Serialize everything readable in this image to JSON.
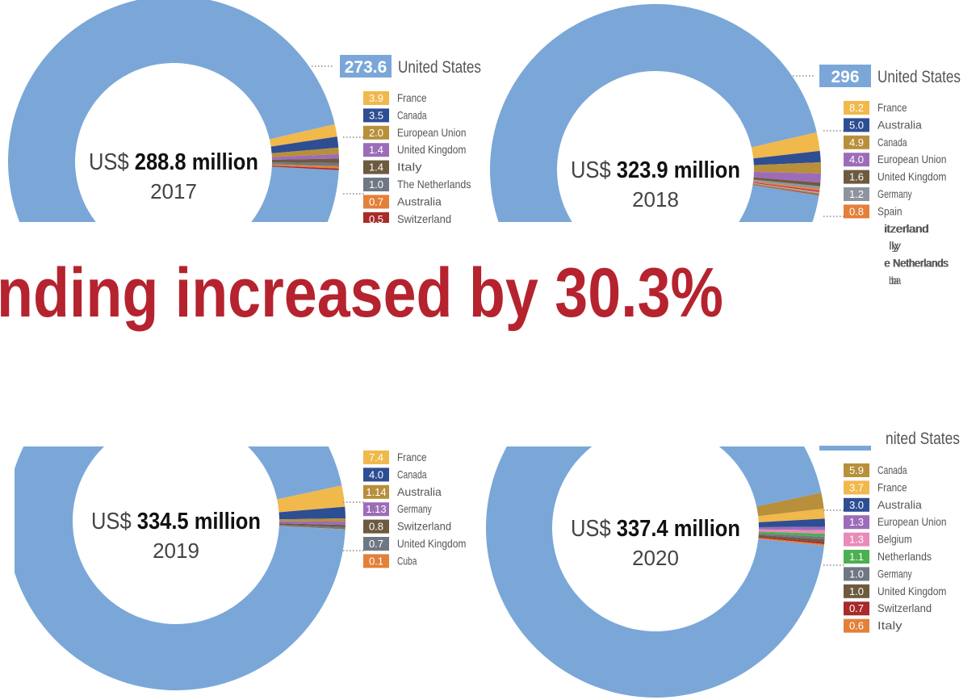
{
  "headline": "nding increased by 30.3%",
  "colors": {
    "us": "#7aa7d8",
    "headline": "#b5232f",
    "label_text": "#555555",
    "center_text": "#111111"
  },
  "chart_data": [
    {
      "type": "pie",
      "year": "2017",
      "currency": "US$",
      "total": "288.8 million",
      "top": {
        "value": "273.6",
        "name": "United States"
      },
      "items": [
        {
          "value": "3.9",
          "name": "France",
          "color": "#f1b84b"
        },
        {
          "value": "3.5",
          "name": "Canada",
          "color": "#2e4e93"
        },
        {
          "value": "2.0",
          "name": "European Union",
          "color": "#b88f3a"
        },
        {
          "value": "1.4",
          "name": "United Kingdom",
          "color": "#9d6cb9"
        },
        {
          "value": "1.4",
          "name": "Italy",
          "color": "#6d5a3f"
        },
        {
          "value": "1.0",
          "name": "The Netherlands",
          "color": "#707784"
        },
        {
          "value": "0.7",
          "name": "Australia",
          "color": "#e3803a"
        },
        {
          "value": "0.5",
          "name": "Switzerland",
          "color": "#a72b2b"
        }
      ]
    },
    {
      "type": "pie",
      "year": "2018",
      "currency": "US$",
      "total": "323.9 million",
      "top": {
        "value": "296",
        "name": "United States"
      },
      "items": [
        {
          "value": "8.2",
          "name": "France",
          "color": "#f1b84b"
        },
        {
          "value": "5.0",
          "name": "Australia",
          "color": "#2e4e93"
        },
        {
          "value": "4.9",
          "name": "Canada",
          "color": "#b88f3a"
        },
        {
          "value": "4.0",
          "name": "European Union",
          "color": "#9d6cb9"
        },
        {
          "value": "1.6",
          "name": "United Kingdom",
          "color": "#6d5a3f"
        },
        {
          "value": "1.2",
          "name": "Germany",
          "color": "#8e949e"
        },
        {
          "value": "0.8",
          "name": "Spain",
          "color": "#e3803a"
        },
        {
          "value": "",
          "name": "itzerland",
          "color": "#a72b2b"
        },
        {
          "value": "",
          "name": "ly",
          "color": "#f08cb8"
        },
        {
          "value": "",
          "name": "e Netherlands",
          "color": "#5fa55a"
        },
        {
          "value": "",
          "name": "ba",
          "color": "#c84c2f"
        }
      ]
    },
    {
      "type": "pie",
      "year": "2019",
      "currency": "US$",
      "total": "334.5 million",
      "items": [
        {
          "value": "7.4",
          "name": "France",
          "color": "#f1b84b"
        },
        {
          "value": "4.0",
          "name": "Canada",
          "color": "#2e4e93"
        },
        {
          "value": "1.14",
          "name": "Australia",
          "color": "#b88f3a"
        },
        {
          "value": "1.13",
          "name": "Germany",
          "color": "#9d6cb9"
        },
        {
          "value": "0.8",
          "name": "Switzerland",
          "color": "#6d5a3f"
        },
        {
          "value": "0.7",
          "name": "United Kingdom",
          "color": "#707784"
        },
        {
          "value": "0.1",
          "name": "Cuba",
          "color": "#e3803a"
        }
      ]
    },
    {
      "type": "pie",
      "year": "2020",
      "currency": "US$",
      "total": "337.4 million",
      "top": {
        "value": "",
        "name": "nited States"
      },
      "items": [
        {
          "value": "5.9",
          "name": "Canada",
          "color": "#b88f3a"
        },
        {
          "value": "3.7",
          "name": "France",
          "color": "#f1b84b"
        },
        {
          "value": "3.0",
          "name": "Australia",
          "color": "#2e4e93"
        },
        {
          "value": "1.3",
          "name": "European Union",
          "color": "#9d6cb9"
        },
        {
          "value": "1.3",
          "name": "Belgium",
          "color": "#e98bb8"
        },
        {
          "value": "1.1",
          "name": "Netherlands",
          "color": "#4caf50"
        },
        {
          "value": "1.0",
          "name": "Germany",
          "color": "#707784"
        },
        {
          "value": "1.0",
          "name": "United Kingdom",
          "color": "#6d5a3f"
        },
        {
          "value": "0.7",
          "name": "Switzerland",
          "color": "#a72b2b"
        },
        {
          "value": "0.6",
          "name": "Italy",
          "color": "#e3803a"
        }
      ]
    }
  ]
}
